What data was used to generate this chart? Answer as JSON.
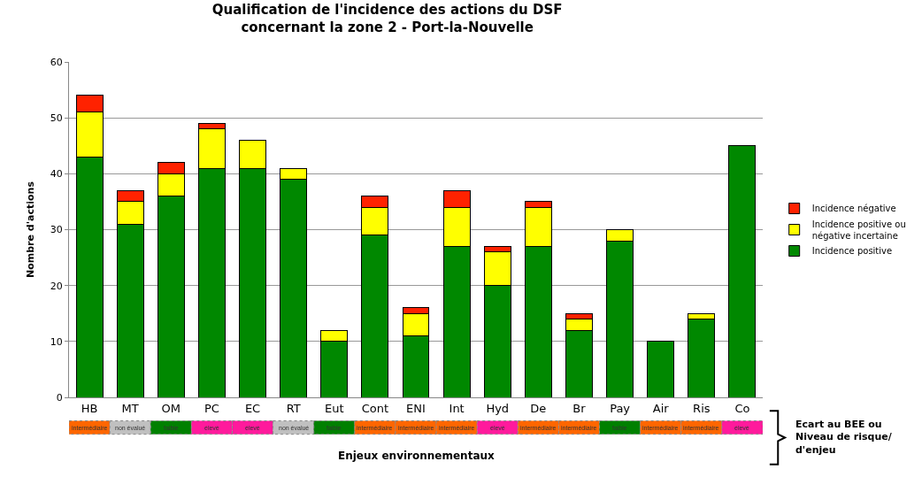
{
  "chart_data": [
    {
      "type": "bar",
      "title": "Qualification de l'incidence des actions du DSF\nconcernant la zone 2 - Port-la-Nouvelle",
      "xlabel": "Enjeux environnementaux",
      "ylabel": "Nombre d'actions",
      "categories": [
        "HB",
        "MT",
        "OM",
        "PC",
        "EC",
        "RT",
        "Eut",
        "Cont",
        "ENI",
        "Int",
        "Hyd",
        "De",
        "Br",
        "Pay",
        "Air",
        "Ris",
        "Co"
      ],
      "stacked": true,
      "ylim": [
        0,
        60
      ],
      "yticks": [
        0,
        10,
        20,
        30,
        40,
        50,
        60
      ],
      "grid": "y",
      "legend": "right",
      "series": [
        {
          "name": "Incidence positive",
          "color": "#008800",
          "values": [
            43,
            31,
            36,
            41,
            41,
            39,
            10,
            29,
            11,
            27,
            20,
            27,
            12,
            28,
            10,
            14,
            45
          ]
        },
        {
          "name": "Incidence positive ou négative incertaine",
          "color": "#ffff00",
          "values": [
            8,
            4,
            4,
            7,
            5,
            2,
            2,
            5,
            4,
            7,
            6,
            7,
            2,
            2,
            0,
            1,
            0
          ]
        },
        {
          "name": "Incidence négative",
          "color": "#ff2200",
          "values": [
            3,
            2,
            2,
            1,
            0,
            0,
            0,
            2,
            1,
            3,
            1,
            1,
            1,
            0,
            0,
            0,
            0
          ]
        }
      ]
    },
    {
      "type": "other",
      "annotations": [
        "Ecart au BEE ou Niveau de risque/ d'enjeu"
      ],
      "cell_labels": [
        [
          "intermédiaire",
          "non évalué",
          "faible",
          "élevé",
          "élevé",
          "non évalué",
          "faible",
          "intermédiaire",
          "intermédiaire",
          "intermédiaire",
          "élevé",
          "intermédiaire",
          "intermédiaire",
          "faible",
          "intermédiaire",
          "intermédiaire",
          "élevé"
        ]
      ],
      "colors": [
        "#ff6600",
        "#c0c0c0",
        "#008000",
        "#ff1a9c",
        "#ff1a9c",
        "#c0c0c0",
        "#008000",
        "#ff6600",
        "#ff6600",
        "#ff6600",
        "#ff1a9c",
        "#ff6600",
        "#ff6600",
        "#008000",
        "#ff6600",
        "#ff6600",
        "#ff1a9c"
      ]
    }
  ]
}
